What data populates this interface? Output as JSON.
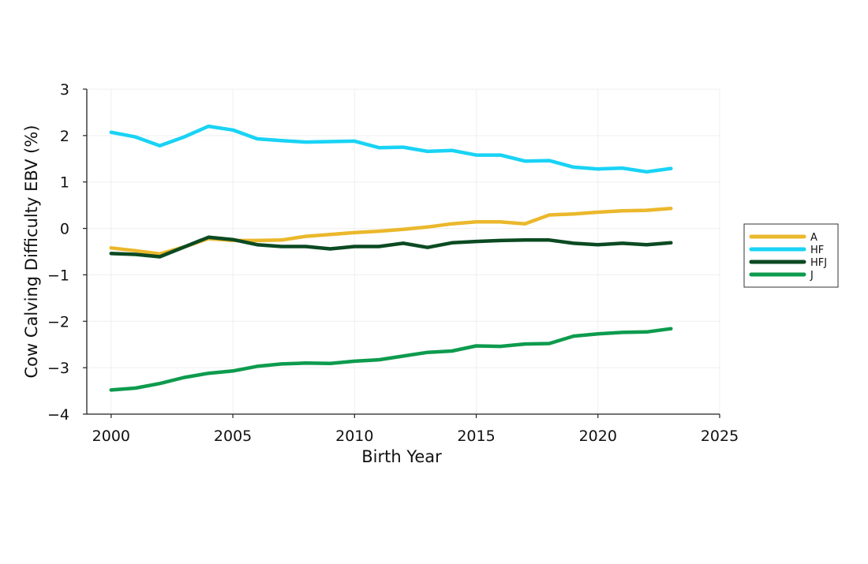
{
  "chart_data": {
    "type": "line",
    "title": "",
    "xlabel": "Birth Year",
    "ylabel": "Cow Calving Difficulty EBV (%)",
    "xlim": [
      1999,
      2025
    ],
    "ylim": [
      -4,
      3
    ],
    "xticks": [
      2000,
      2005,
      2010,
      2015,
      2020,
      2025
    ],
    "yticks": [
      3,
      2,
      1,
      0,
      -1,
      -2,
      -3,
      -4
    ],
    "ytick_labels": [
      "3",
      "2",
      "1",
      "0",
      "−1",
      "−2",
      "−3",
      "−4"
    ],
    "grid": true,
    "legend_position": "right",
    "x": [
      2000,
      2001,
      2002,
      2003,
      2004,
      2005,
      2006,
      2007,
      2008,
      2009,
      2010,
      2011,
      2012,
      2013,
      2014,
      2015,
      2016,
      2017,
      2018,
      2019,
      2020,
      2021,
      2022,
      2023
    ],
    "series": [
      {
        "name": "A",
        "color": "#EBB82C",
        "values": [
          -0.42,
          -0.48,
          -0.55,
          -0.4,
          -0.22,
          -0.26,
          -0.26,
          -0.25,
          -0.17,
          -0.13,
          -0.09,
          -0.06,
          -0.02,
          0.03,
          0.1,
          0.14,
          0.14,
          0.1,
          0.29,
          0.31,
          0.35,
          0.38,
          0.39,
          0.43
        ]
      },
      {
        "name": "HF",
        "color": "#19D3F5",
        "values": [
          2.07,
          1.97,
          1.78,
          1.97,
          2.2,
          2.12,
          1.93,
          1.89,
          1.86,
          1.87,
          1.88,
          1.74,
          1.75,
          1.66,
          1.68,
          1.58,
          1.58,
          1.45,
          1.46,
          1.32,
          1.28,
          1.3,
          1.22,
          1.29
        ]
      },
      {
        "name": "HFJ",
        "color": "#0B4A22",
        "values": [
          -0.54,
          -0.56,
          -0.61,
          -0.4,
          -0.19,
          -0.24,
          -0.35,
          -0.39,
          -0.39,
          -0.44,
          -0.39,
          -0.39,
          -0.32,
          -0.41,
          -0.31,
          -0.28,
          -0.26,
          -0.25,
          -0.25,
          -0.32,
          -0.35,
          -0.32,
          -0.35,
          -0.31
        ]
      },
      {
        "name": "J",
        "color": "#0D9B4E",
        "values": [
          -3.48,
          -3.44,
          -3.34,
          -3.21,
          -3.12,
          -3.07,
          -2.97,
          -2.92,
          -2.9,
          -2.91,
          -2.86,
          -2.83,
          -2.75,
          -2.67,
          -2.64,
          -2.53,
          -2.54,
          -2.49,
          -2.48,
          -2.32,
          -2.27,
          -2.24,
          -2.23,
          -2.16
        ]
      }
    ]
  }
}
